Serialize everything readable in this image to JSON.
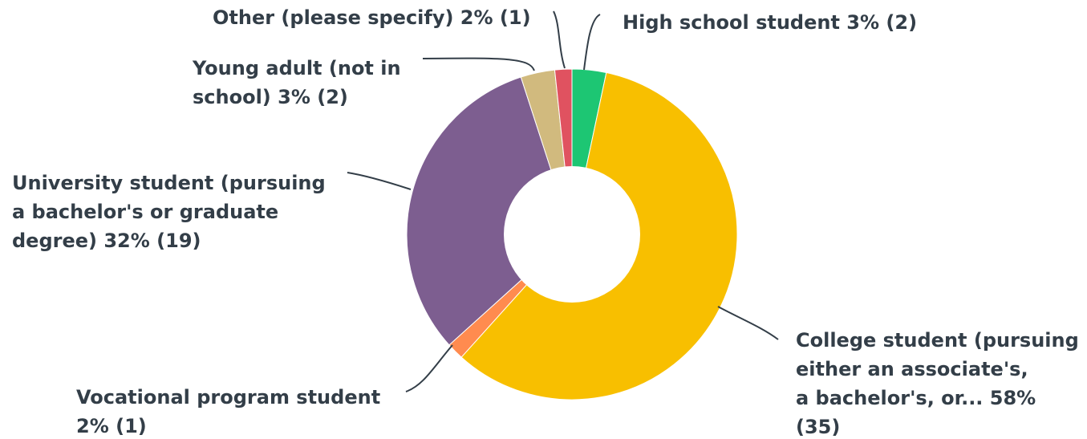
{
  "chart_data": {
    "type": "pie",
    "donut": true,
    "title": "",
    "slices": [
      {
        "label_lines": [
          "High school student 3% (2)"
        ],
        "category": "High school student",
        "percent": 3,
        "count": 2,
        "color": "#1dc673"
      },
      {
        "label_lines": [
          "College student (pursuing",
          "either an associate's,",
          "a bachelor's, or... 58%",
          "(35)"
        ],
        "category": "College student (pursuing either an associate's, a bachelor's, or...",
        "percent": 58,
        "count": 35,
        "color": "#f8bf00"
      },
      {
        "label_lines": [
          "Vocational program student",
          "2% (1)"
        ],
        "category": "Vocational program student",
        "percent": 2,
        "count": 1,
        "color": "#ff8b4f"
      },
      {
        "label_lines": [
          "University student (pursuing",
          "a bachelor's or graduate",
          "degree) 32% (19)"
        ],
        "category": "University student (pursuing a bachelor's or graduate degree)",
        "percent": 32,
        "count": 19,
        "color": "#7d5e90"
      },
      {
        "label_lines": [
          "Young adult (not in",
          "school) 3% (2)"
        ],
        "category": "Young adult (not in school)",
        "percent": 3,
        "count": 2,
        "color": "#d1ba7e"
      },
      {
        "label_lines": [
          "Other (please specify) 2% (1)"
        ],
        "category": "Other (please specify)",
        "percent": 2,
        "count": 1,
        "color": "#e05260"
      }
    ]
  }
}
